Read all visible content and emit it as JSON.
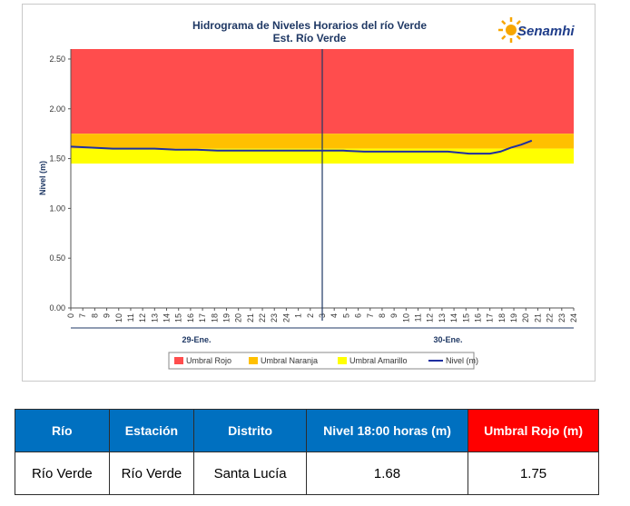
{
  "chart_data": {
    "type": "line",
    "title": "Hidrograma de Niveles Horarios del río Verde",
    "subtitle": "Est. Río Verde",
    "brand": "Senamhi",
    "ylabel": "Nivel (m)",
    "ylim": [
      0,
      2.6
    ],
    "yticks": [
      "0.00",
      "0.50",
      "1.00",
      "1.50",
      "2.00",
      "2.50"
    ],
    "yticks_values": [
      0,
      0.5,
      1.0,
      1.5,
      2.0,
      2.5
    ],
    "xlim": [
      0,
      48
    ],
    "xticks": [
      "0",
      "7",
      "8",
      "9",
      "10",
      "11",
      "12",
      "13",
      "14",
      "15",
      "16",
      "17",
      "18",
      "19",
      "20",
      "21",
      "22",
      "23",
      "24",
      "1",
      "2",
      "3",
      "4",
      "5",
      "6",
      "7",
      "8",
      "9",
      "10",
      "11",
      "12",
      "13",
      "14",
      "15",
      "16",
      "17",
      "18",
      "19",
      "20",
      "21",
      "22",
      "23",
      "24"
    ],
    "day_labels": [
      "29-Ene.",
      "30-Ene."
    ],
    "day_divider_x": 24,
    "grid": false,
    "legend_position": "bottom",
    "thresholds": [
      {
        "name": "Umbral Rojo",
        "from": 1.75,
        "to": 2.6,
        "color": "#ff4d4d"
      },
      {
        "name": "Umbral Naranja",
        "from": 1.6,
        "to": 1.75,
        "color": "#ffc000"
      },
      {
        "name": "Umbral Amarillo",
        "from": 1.45,
        "to": 1.6,
        "color": "#ffff00"
      }
    ],
    "series": [
      {
        "name": "Nivel (m)",
        "color": "#1f2fa0",
        "x": [
          0,
          2,
          4,
          6,
          8,
          10,
          12,
          14,
          16,
          18,
          20,
          22,
          24,
          26,
          28,
          30,
          32,
          34,
          36,
          38,
          40,
          41,
          42,
          43,
          44
        ],
        "y": [
          1.62,
          1.61,
          1.6,
          1.6,
          1.6,
          1.59,
          1.59,
          1.58,
          1.58,
          1.58,
          1.58,
          1.58,
          1.58,
          1.58,
          1.57,
          1.57,
          1.57,
          1.57,
          1.57,
          1.55,
          1.55,
          1.57,
          1.61,
          1.64,
          1.68
        ]
      }
    ]
  },
  "table": {
    "headers": [
      "Río",
      "Estación",
      "Distrito",
      "Nivel  18:00 horas (m)",
      "Umbral Rojo (m)"
    ],
    "rows": [
      [
        "Río Verde",
        "Río Verde",
        "Santa Lucía",
        "1.68",
        "1.75"
      ]
    ]
  }
}
